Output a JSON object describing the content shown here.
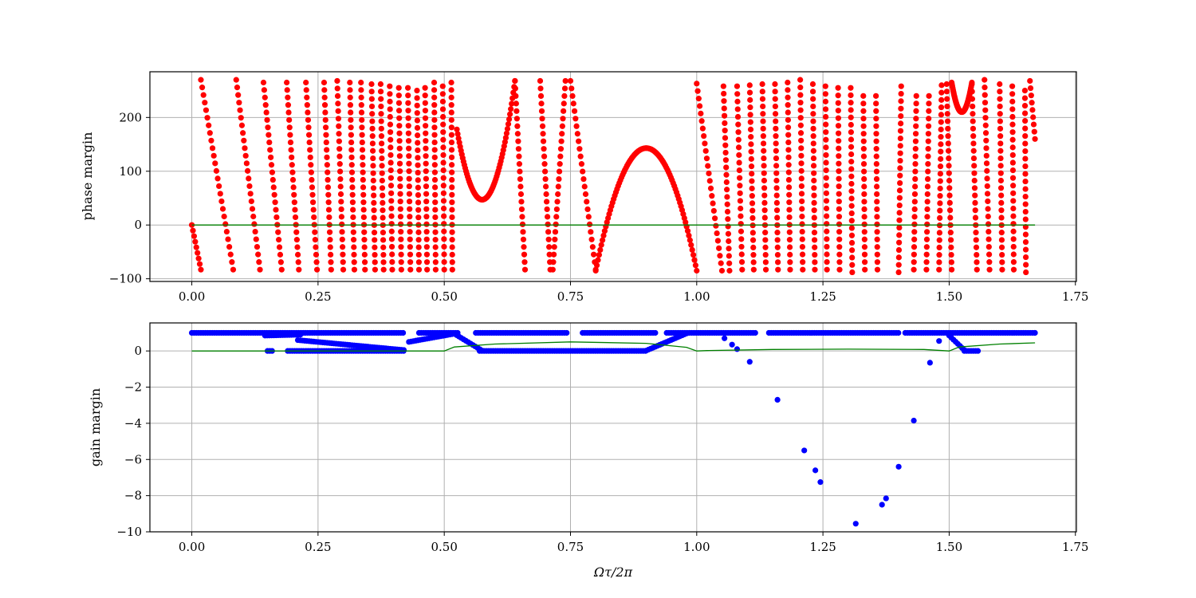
{
  "chart_data": [
    {
      "type": "scatter",
      "title": "",
      "xlabel": "",
      "ylabel": "phase margin",
      "xlim": [
        -0.083,
        1.752
      ],
      "ylim": [
        -105,
        285
      ],
      "grid": true,
      "x_ticks": [
        0.0,
        0.25,
        0.5,
        0.75,
        1.0,
        1.25,
        1.5,
        1.75
      ],
      "x_tick_labels": [
        "0.00",
        "0.25",
        "0.50",
        "0.75",
        "1.00",
        "1.25",
        "1.50",
        "1.75"
      ],
      "y_ticks": [
        -100,
        0,
        100,
        200
      ],
      "y_tick_labels": [
        "−100",
        "0",
        "100",
        "200"
      ],
      "series": [
        {
          "color": "#ff0000",
          "marker": "dot",
          "components": [
            {
              "kind": "line",
              "x": [
                0.0,
                0.018
              ],
              "y": [
                0,
                -83
              ]
            },
            {
              "kind": "line",
              "x": [
                0.018,
                0.082
              ],
              "y": [
                270,
                -83
              ]
            },
            {
              "kind": "line",
              "x": [
                0.088,
                0.135
              ],
              "y": [
                270,
                -83
              ]
            },
            {
              "kind": "line",
              "x": [
                0.142,
                0.178
              ],
              "y": [
                265,
                -83
              ]
            },
            {
              "kind": "line",
              "x": [
                0.188,
                0.212
              ],
              "y": [
                265,
                -83
              ]
            },
            {
              "kind": "line",
              "x": [
                0.226,
                0.248
              ],
              "y": [
                265,
                -83
              ]
            },
            {
              "kind": "line",
              "x": [
                0.262,
                0.276
              ],
              "y": [
                265,
                -83
              ]
            },
            {
              "kind": "line",
              "x": [
                0.288,
                0.3
              ],
              "y": [
                268,
                -83
              ]
            },
            {
              "kind": "line",
              "x": [
                0.313,
                0.322
              ],
              "y": [
                265,
                -83
              ]
            },
            {
              "kind": "line",
              "x": [
                0.335,
                0.343
              ],
              "y": [
                265,
                -83
              ]
            },
            {
              "kind": "line",
              "x": [
                0.356,
                0.363
              ],
              "y": [
                262,
                -83
              ]
            },
            {
              "kind": "line",
              "x": [
                0.374,
                0.38
              ],
              "y": [
                262,
                -83
              ]
            },
            {
              "kind": "line",
              "x": [
                0.392,
                0.397
              ],
              "y": [
                258,
                -83
              ]
            },
            {
              "kind": "line",
              "x": [
                0.41,
                0.415
              ],
              "y": [
                255,
                -83
              ]
            },
            {
              "kind": "line",
              "x": [
                0.428,
                0.433
              ],
              "y": [
                255,
                -83
              ]
            },
            {
              "kind": "line",
              "x": [
                0.446,
                0.45
              ],
              "y": [
                250,
                -83
              ]
            },
            {
              "kind": "line",
              "x": [
                0.462,
                0.466
              ],
              "y": [
                255,
                -83
              ]
            },
            {
              "kind": "line",
              "x": [
                0.48,
                0.483
              ],
              "y": [
                265,
                -83
              ]
            },
            {
              "kind": "line",
              "x": [
                0.497,
                0.5
              ],
              "y": [
                258,
                -83
              ]
            },
            {
              "kind": "line",
              "x": [
                0.514,
                0.516
              ],
              "y": [
                265,
                -83
              ]
            },
            {
              "kind": "parabola",
              "x_start": 0.525,
              "x_end": 0.64,
              "x_vertex": 0.575,
              "y_min": 47,
              "y_end": 268
            },
            {
              "kind": "line",
              "x": [
                0.64,
                0.66
              ],
              "y": [
                268,
                -83
              ]
            },
            {
              "kind": "line",
              "x": [
                0.69,
                0.71
              ],
              "y": [
                268,
                -83
              ]
            },
            {
              "kind": "line",
              "x": [
                0.74,
                0.715
              ],
              "y": [
                268,
                -83
              ]
            },
            {
              "kind": "line",
              "x": [
                0.8,
                0.75
              ],
              "y": [
                -83,
                268
              ]
            },
            {
              "kind": "parabola_down",
              "x_start": 0.8,
              "x_end": 1.0,
              "x_vertex": 0.9,
              "y_max": 143,
              "y_end": -85
            },
            {
              "kind": "line",
              "x": [
                1.0,
                1.05
              ],
              "y": [
                263,
                -85
              ]
            },
            {
              "kind": "line",
              "x": [
                1.053,
                1.065
              ],
              "y": [
                258,
                -85
              ]
            },
            {
              "kind": "line",
              "x": [
                1.08,
                1.09
              ],
              "y": [
                258,
                -83
              ]
            },
            {
              "kind": "line",
              "x": [
                1.105,
                1.113
              ],
              "y": [
                260,
                -83
              ]
            },
            {
              "kind": "line",
              "x": [
                1.13,
                1.137
              ],
              "y": [
                262,
                -83
              ]
            },
            {
              "kind": "line",
              "x": [
                1.155,
                1.161
              ],
              "y": [
                262,
                -83
              ]
            },
            {
              "kind": "line",
              "x": [
                1.18,
                1.185
              ],
              "y": [
                265,
                -83
              ]
            },
            {
              "kind": "line",
              "x": [
                1.205,
                1.21
              ],
              "y": [
                270,
                -83
              ]
            },
            {
              "kind": "line",
              "x": [
                1.23,
                1.234
              ],
              "y": [
                262,
                -83
              ]
            },
            {
              "kind": "line",
              "x": [
                1.255,
                1.258
              ],
              "y": [
                258,
                -83
              ]
            },
            {
              "kind": "line",
              "x": [
                1.28,
                1.283
              ],
              "y": [
                255,
                -83
              ]
            },
            {
              "kind": "line",
              "x": [
                1.305,
                1.308
              ],
              "y": [
                255,
                -88
              ]
            },
            {
              "kind": "line",
              "x": [
                1.33,
                1.333
              ],
              "y": [
                240,
                -83
              ]
            },
            {
              "kind": "line",
              "x": [
                1.355,
                1.358
              ],
              "y": [
                240,
                -83
              ]
            },
            {
              "kind": "line",
              "x": [
                1.4,
                1.405
              ],
              "y": [
                -88,
                258
              ]
            },
            {
              "kind": "line",
              "x": [
                1.43,
                1.435
              ],
              "y": [
                -83,
                240
              ]
            },
            {
              "kind": "line",
              "x": [
                1.455,
                1.46
              ],
              "y": [
                -83,
                240
              ]
            },
            {
              "kind": "line",
              "x": [
                1.48,
                1.485
              ],
              "y": [
                -83,
                260
              ]
            },
            {
              "kind": "line",
              "x": [
                1.505,
                1.495
              ],
              "y": [
                -83,
                262
              ]
            },
            {
              "kind": "parabola",
              "x_start": 1.505,
              "x_end": 1.545,
              "x_vertex": 1.525,
              "y_min": 210,
              "y_end": 265
            },
            {
              "kind": "line",
              "x": [
                1.555,
                1.545
              ],
              "y": [
                -83,
                262
              ]
            },
            {
              "kind": "line",
              "x": [
                1.57,
                1.58
              ],
              "y": [
                270,
                -83
              ]
            },
            {
              "kind": "line",
              "x": [
                1.6,
                1.605
              ],
              "y": [
                262,
                -83
              ]
            },
            {
              "kind": "line",
              "x": [
                1.625,
                1.628
              ],
              "y": [
                258,
                -83
              ]
            },
            {
              "kind": "line",
              "x": [
                1.65,
                1.652
              ],
              "y": [
                250,
                -88
              ]
            },
            {
              "kind": "line",
              "x": [
                1.66,
                1.67
              ],
              "y": [
                268,
                160
              ]
            }
          ]
        },
        {
          "color": "#008000",
          "marker": "line",
          "x": [
            0.0,
            1.67
          ],
          "y": [
            0,
            0
          ]
        }
      ]
    },
    {
      "type": "scatter",
      "title": "",
      "xlabel": "Ωτ/2π",
      "ylabel": "gain margin",
      "xlim": [
        -0.083,
        1.752
      ],
      "ylim": [
        -10.0,
        1.55
      ],
      "grid": true,
      "x_ticks": [
        0.0,
        0.25,
        0.5,
        0.75,
        1.0,
        1.25,
        1.5,
        1.75
      ],
      "x_tick_labels": [
        "0.00",
        "0.25",
        "0.50",
        "0.75",
        "1.00",
        "1.25",
        "1.50",
        "1.75"
      ],
      "y_ticks": [
        -10,
        -8,
        -6,
        -4,
        -2,
        0
      ],
      "y_tick_labels": [
        "−10",
        "−8",
        "−6",
        "−4",
        "−2",
        "0"
      ],
      "series": [
        {
          "color": "#0000ff",
          "marker": "dot",
          "upper_band": {
            "x_range": [
              0.0,
              1.67
            ],
            "y": 1.0,
            "gaps": [
              [
                0.42,
                0.45
              ],
              [
                0.53,
                0.56
              ],
              [
                0.745,
                0.77
              ],
              [
                0.92,
                0.94
              ],
              [
                1.12,
                1.14
              ],
              [
                1.4,
                1.41
              ]
            ]
          },
          "lower_band": [
            [
              0.15,
              0.16,
              0.0
            ],
            [
              0.19,
              0.42,
              0.0
            ],
            [
              0.57,
              0.9,
              0.0
            ],
            [
              1.53,
              1.56,
              0.0
            ]
          ],
          "transitions": [
            {
              "x": [
                0.145,
                0.215
              ],
              "y": [
                0.85,
                0.9
              ]
            },
            {
              "x": [
                0.21,
                0.42
              ],
              "y": [
                0.6,
                0.05
              ]
            },
            {
              "x": [
                0.43,
                0.52
              ],
              "y": [
                0.5,
                0.95
              ]
            },
            {
              "x": [
                0.52,
                0.575
              ],
              "y": [
                0.95,
                0.02
              ]
            },
            {
              "x": [
                0.9,
                0.98
              ],
              "y": [
                0.02,
                0.97
              ]
            },
            {
              "x": [
                1.5,
                1.53
              ],
              "y": [
                0.85,
                0.05
              ]
            }
          ],
          "points": [
            [
              1.055,
              0.7
            ],
            [
              1.07,
              0.35
            ],
            [
              1.08,
              0.1
            ],
            [
              1.105,
              -0.6
            ],
            [
              1.16,
              -2.7
            ],
            [
              1.213,
              -5.5
            ],
            [
              1.235,
              -6.6
            ],
            [
              1.245,
              -7.25
            ],
            [
              1.315,
              -9.55
            ],
            [
              1.367,
              -8.5
            ],
            [
              1.375,
              -8.15
            ],
            [
              1.4,
              -6.4
            ],
            [
              1.43,
              -3.85
            ],
            [
              1.462,
              -0.65
            ],
            [
              1.48,
              0.55
            ],
            [
              1.67,
              1.0
            ]
          ]
        },
        {
          "color": "#008000",
          "marker": "line",
          "x": [
            0.0,
            0.5,
            0.52,
            0.6,
            0.75,
            0.9,
            0.98,
            1.0,
            1.02,
            1.15,
            1.3,
            1.45,
            1.5,
            1.52,
            1.6,
            1.67
          ],
          "y": [
            0.0,
            0.0,
            0.22,
            0.38,
            0.5,
            0.42,
            0.2,
            0.0,
            0.02,
            0.08,
            0.1,
            0.08,
            0.0,
            0.22,
            0.38,
            0.45
          ]
        }
      ]
    }
  ]
}
